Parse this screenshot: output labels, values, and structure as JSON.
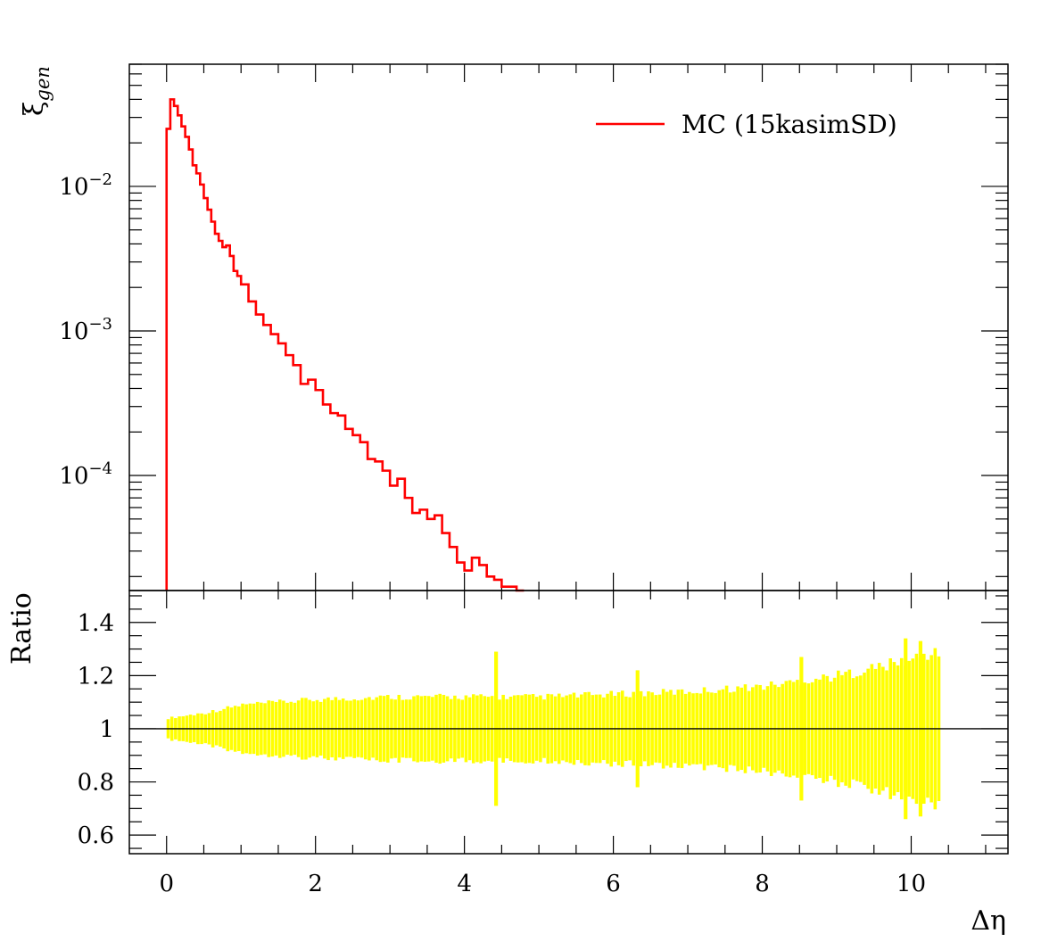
{
  "chart_data": [
    {
      "type": "histogram",
      "panel": "main",
      "ylabel": "ξ",
      "ylabel_sub": "gen",
      "yscale": "log",
      "xlim": [
        -0.5,
        11.3
      ],
      "ylim": [
        1.6e-05,
        0.07
      ],
      "yticks": [
        {
          "value": 0.01,
          "base": "10",
          "exp": "−2"
        },
        {
          "value": 0.001,
          "base": "10",
          "exp": "−3"
        },
        {
          "value": 0.0001,
          "base": "10",
          "exp": "−4"
        }
      ],
      "legend_position": "top-right",
      "series": [
        {
          "name": "MC (15kasimSD)",
          "color": "#ff0000",
          "x_edges": [
            0.0,
            0.05,
            0.1,
            0.15,
            0.2,
            0.25,
            0.3,
            0.35,
            0.4,
            0.45,
            0.5,
            0.55,
            0.6,
            0.65,
            0.7,
            0.75,
            0.8,
            0.85,
            0.9,
            0.95,
            1.0,
            1.1,
            1.2,
            1.3,
            1.4,
            1.5,
            1.6,
            1.7,
            1.8,
            1.9,
            2.0,
            2.1,
            2.2,
            2.3,
            2.4,
            2.5,
            2.6,
            2.7,
            2.8,
            2.9,
            3.0,
            3.1,
            3.2,
            3.3,
            3.4,
            3.5,
            3.6,
            3.7,
            3.8,
            3.9,
            4.0,
            4.1,
            4.2,
            4.3,
            4.4,
            4.5,
            4.6,
            4.7,
            4.8
          ],
          "values": [
            0.025,
            0.04,
            0.036,
            0.031,
            0.026,
            0.022,
            0.018,
            0.014,
            0.0123,
            0.0103,
            0.0083,
            0.0069,
            0.0057,
            0.0047,
            0.0042,
            0.0038,
            0.0039,
            0.0033,
            0.0026,
            0.0024,
            0.0021,
            0.0016,
            0.0013,
            0.0011,
            0.00095,
            0.00082,
            0.00068,
            0.00058,
            0.00043,
            0.00046,
            0.00039,
            0.00031,
            0.00027,
            0.00026,
            0.00021,
            0.00019,
            0.00017,
            0.00013,
            0.000125,
            0.000108,
            8.5e-05,
            9.5e-05,
            7e-05,
            5.5e-05,
            5.8e-05,
            5e-05,
            5.3e-05,
            4e-05,
            3.2e-05,
            2.5e-05,
            2.2e-05,
            2.7e-05,
            2.4e-05,
            2e-05,
            1.9e-05,
            1.7e-05,
            1.7e-05,
            1.6e-05
          ]
        }
      ]
    },
    {
      "type": "bar",
      "panel": "ratio",
      "ylabel": "Ratio",
      "xlabel": "Δη",
      "xlim": [
        -0.5,
        11.3
      ],
      "ylim": [
        0.53,
        1.52
      ],
      "xticks": [
        0,
        2,
        4,
        6,
        8,
        10
      ],
      "xtick_labels": [
        "0",
        "2",
        "4",
        "6",
        "8",
        "10"
      ],
      "yticks": [
        0.6,
        0.8,
        1,
        1.2,
        1.4
      ],
      "ytick_labels": [
        "0.6",
        "0.8",
        "1",
        "1.2",
        "1.4"
      ],
      "reference_line": 1,
      "band_color": "#ffff00",
      "band_x_start": 0.0,
      "band_x_end": 10.4,
      "band_bin_width": 0.05,
      "band_profile": [
        {
          "x": 0.0,
          "err": 0.04
        },
        {
          "x": 0.5,
          "err": 0.06
        },
        {
          "x": 1.0,
          "err": 0.09
        },
        {
          "x": 2.0,
          "err": 0.11
        },
        {
          "x": 3.0,
          "err": 0.12
        },
        {
          "x": 4.0,
          "err": 0.12
        },
        {
          "x": 5.0,
          "err": 0.12
        },
        {
          "x": 6.0,
          "err": 0.13
        },
        {
          "x": 7.0,
          "err": 0.14
        },
        {
          "x": 8.0,
          "err": 0.16
        },
        {
          "x": 9.0,
          "err": 0.2
        },
        {
          "x": 10.0,
          "err": 0.26
        },
        {
          "x": 10.4,
          "err": 0.3
        }
      ],
      "band_spikes": [
        {
          "x": 4.4,
          "up": 1.29,
          "down": 0.71
        },
        {
          "x": 6.3,
          "up": 1.22,
          "down": 0.78
        },
        {
          "x": 8.5,
          "up": 1.27,
          "down": 0.73
        },
        {
          "x": 9.9,
          "up": 1.34,
          "down": 0.66
        },
        {
          "x": 10.1,
          "up": 1.33,
          "down": 0.67
        }
      ]
    }
  ]
}
